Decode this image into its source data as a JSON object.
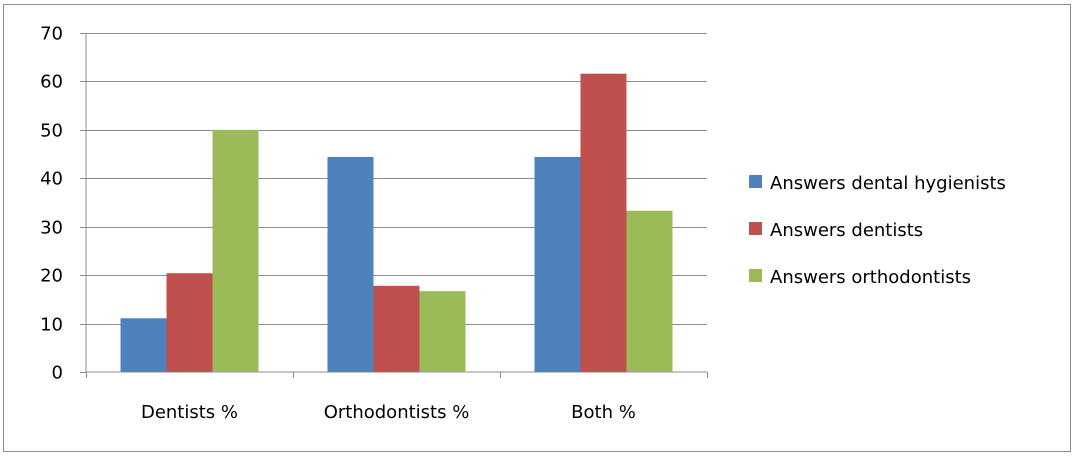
{
  "chart_data": {
    "type": "bar",
    "categories": [
      "Dentists %",
      "Orthodontists %",
      "Both %"
    ],
    "series": [
      {
        "name": "Answers dental hygienists",
        "values": [
          11.1,
          44.4,
          44.4
        ],
        "color": "#4f81bd"
      },
      {
        "name": "Answers dentists",
        "values": [
          20.4,
          17.8,
          61.6
        ],
        "color": "#c0504d"
      },
      {
        "name": "Answers orthodontists",
        "values": [
          50,
          16.7,
          33.3
        ],
        "color": "#9bbb59"
      }
    ],
    "title": "",
    "xlabel": "",
    "ylabel": "",
    "ylim": [
      0,
      70
    ],
    "yticks": [
      0,
      10,
      20,
      30,
      40,
      50,
      60,
      70
    ],
    "grid": true,
    "legend_position": "right"
  }
}
